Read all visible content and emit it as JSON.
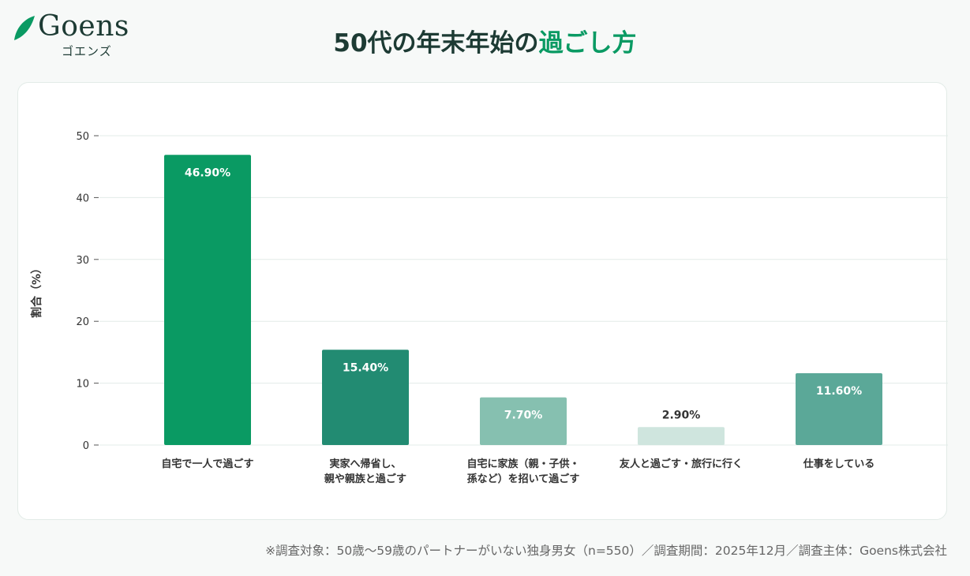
{
  "logo": {
    "name": "Goens",
    "sub": "ゴエンズ",
    "leaf_color": "#0a9a63"
  },
  "title": {
    "prefix": "50代の年末年始の",
    "accent": "過ごし方"
  },
  "colors": {
    "title_dark": "#1d3b34",
    "accent": "#0a9a63"
  },
  "chart_data": {
    "type": "bar",
    "ylabel": "割合（%）",
    "xlabel": "",
    "ylim": [
      0,
      50
    ],
    "yticks": [
      0,
      10,
      20,
      30,
      40,
      50
    ],
    "grid": true,
    "categories": [
      [
        "自宅で一人で過ごす"
      ],
      [
        "実家へ帰省し、",
        "親や親族と過ごす"
      ],
      [
        "自宅に家族（親・子供・",
        "孫など）を招いて過ごす"
      ],
      [
        "友人と過ごす・旅行に行く"
      ],
      [
        "仕事をしている"
      ]
    ],
    "values": [
      46.9,
      15.4,
      7.7,
      2.9,
      11.6
    ],
    "labels": [
      "46.90%",
      "15.40%",
      "7.70%",
      "2.90%",
      "11.60%"
    ],
    "bar_colors": [
      "#0a9a63",
      "#228b72",
      "#86c0b0",
      "#cfe5de",
      "#5ba898"
    ]
  },
  "footnote": "※調査対象：50歳〜59歳のパートナーがいない独身男女（n=550）／調査期間：2025年12月／調査主体：Goens株式会社"
}
